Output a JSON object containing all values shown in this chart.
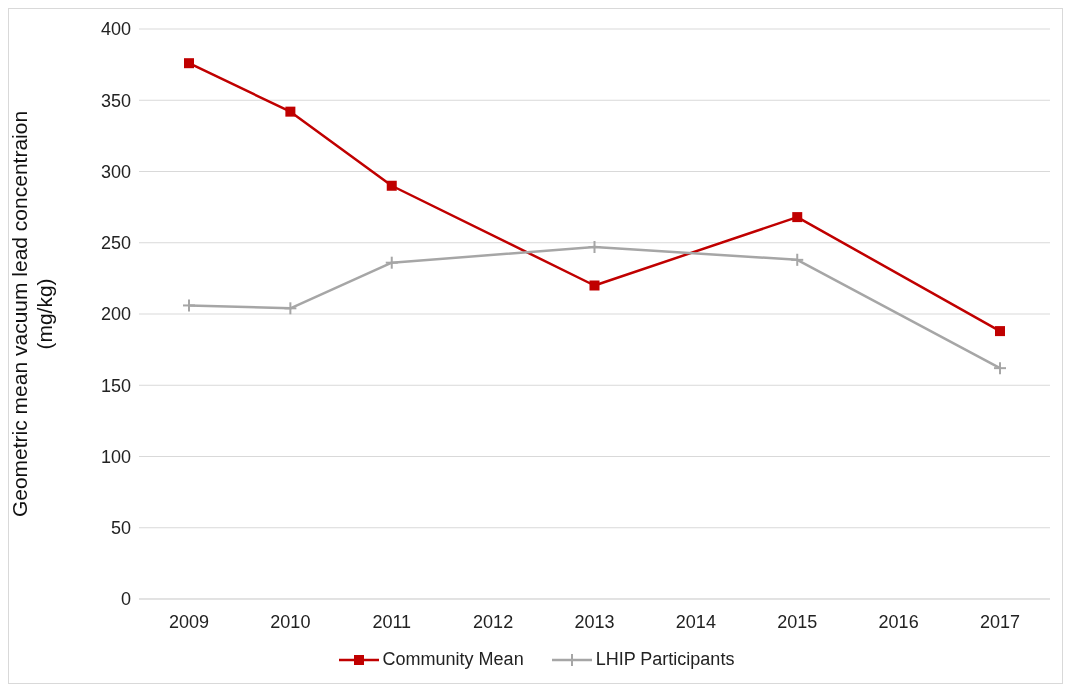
{
  "chart_data": {
    "type": "line",
    "ylabel": "Geometric mean vacuum lead concentraion (mg/kg)",
    "categories": [
      "2009",
      "2010",
      "2011",
      "2012",
      "2013",
      "2014",
      "2015",
      "2016",
      "2017"
    ],
    "series": [
      {
        "name": "Community Mean",
        "color": "#c00000",
        "marker": "square",
        "values": [
          376,
          342,
          290,
          null,
          220,
          null,
          268,
          null,
          188
        ]
      },
      {
        "name": "LHIP Participants",
        "color": "#a6a6a6",
        "marker": "cross",
        "values": [
          206,
          204,
          236,
          null,
          247,
          null,
          238,
          null,
          162
        ]
      }
    ],
    "ylim": [
      0,
      400
    ],
    "yticks": [
      0,
      50,
      100,
      150,
      200,
      250,
      300,
      350,
      400
    ],
    "grid": "y",
    "legend": "bottom"
  }
}
